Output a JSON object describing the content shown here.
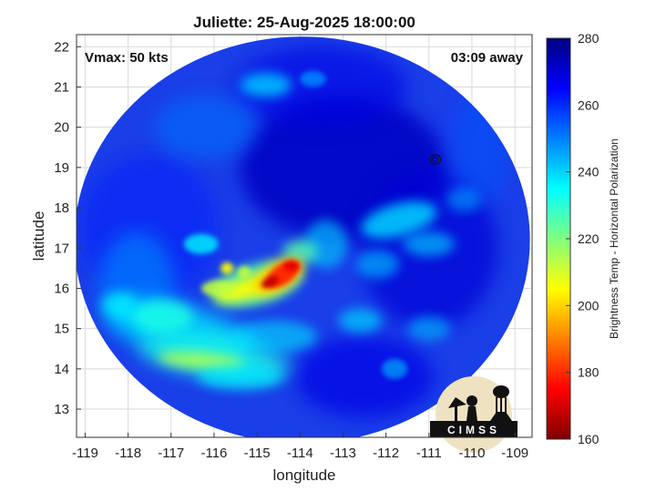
{
  "chart_data": {
    "type": "heatmap",
    "title": "Juliette: 25-Aug-2025 18:00:00",
    "xlabel": "longitude",
    "ylabel": "latitude",
    "xlim": [
      -119.2,
      -108.6
    ],
    "ylim": [
      12.3,
      22.3
    ],
    "xticks": [
      -119,
      -118,
      -117,
      -116,
      -115,
      -114,
      -113,
      -112,
      -111,
      -110,
      -109
    ],
    "yticks": [
      13,
      14,
      15,
      16,
      17,
      18,
      19,
      20,
      21,
      22
    ],
    "grid": true,
    "annotations": {
      "vmax": "Vmax: 50 kts",
      "time_away": "03:09 away"
    },
    "colorbar": {
      "label": "Brightness Temp - Horizontal Polarization",
      "range": [
        160,
        280
      ],
      "ticks": [
        160,
        180,
        200,
        220,
        240,
        260,
        280
      ],
      "colormap": "jet"
    },
    "swath_center": [
      -113.95,
      17.2
    ],
    "swath_radius_deg": [
      5.3,
      5.05
    ],
    "features": [
      {
        "name": "core",
        "lon": -114.5,
        "lat": 16.3,
        "value": 180
      },
      {
        "name": "inner-band",
        "lon": -115.2,
        "lat": 16.0,
        "value": 205
      },
      {
        "name": "southwest-band",
        "lon": -116.3,
        "lat": 14.2,
        "value": 215
      },
      {
        "name": "west-band",
        "lon": -117.2,
        "lat": 15.3,
        "value": 232
      },
      {
        "name": "northeast-patch",
        "lon": -111.7,
        "lat": 17.6,
        "value": 240
      },
      {
        "name": "north-patch",
        "lon": -114.8,
        "lat": 21.1,
        "value": 243
      }
    ],
    "logo": "CIMSS"
  }
}
